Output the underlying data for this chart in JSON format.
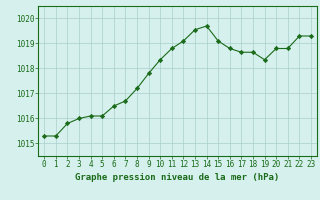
{
  "x": [
    0,
    1,
    2,
    3,
    4,
    5,
    6,
    7,
    8,
    9,
    10,
    11,
    12,
    13,
    14,
    15,
    16,
    17,
    18,
    19,
    20,
    21,
    22,
    23
  ],
  "y": [
    1015.3,
    1015.3,
    1015.8,
    1016.0,
    1016.1,
    1016.1,
    1016.5,
    1016.7,
    1017.2,
    1017.8,
    1018.35,
    1018.8,
    1019.1,
    1019.55,
    1019.7,
    1019.1,
    1018.8,
    1018.65,
    1018.65,
    1018.35,
    1018.8,
    1018.8,
    1019.3,
    1019.3
  ],
  "line_color": "#1a6b1a",
  "marker": "D",
  "marker_size": 2.2,
  "bg_color": "#d6f0ed",
  "grid_color": "#aacfcc",
  "xlabel": "Graphe pression niveau de la mer (hPa)",
  "xlabel_color": "#1a6b1a",
  "tick_color": "#1a6b1a",
  "ylim": [
    1014.5,
    1020.5
  ],
  "yticks": [
    1015,
    1016,
    1017,
    1018,
    1019,
    1020
  ],
  "xlim": [
    -0.5,
    23.5
  ],
  "xticks": [
    0,
    1,
    2,
    3,
    4,
    5,
    6,
    7,
    8,
    9,
    10,
    11,
    12,
    13,
    14,
    15,
    16,
    17,
    18,
    19,
    20,
    21,
    22,
    23
  ],
  "xtick_labels": [
    "0",
    "1",
    "2",
    "3",
    "4",
    "5",
    "6",
    "7",
    "8",
    "9",
    "10",
    "11",
    "12",
    "13",
    "14",
    "15",
    "16",
    "17",
    "18",
    "19",
    "20",
    "21",
    "22",
    "23"
  ]
}
